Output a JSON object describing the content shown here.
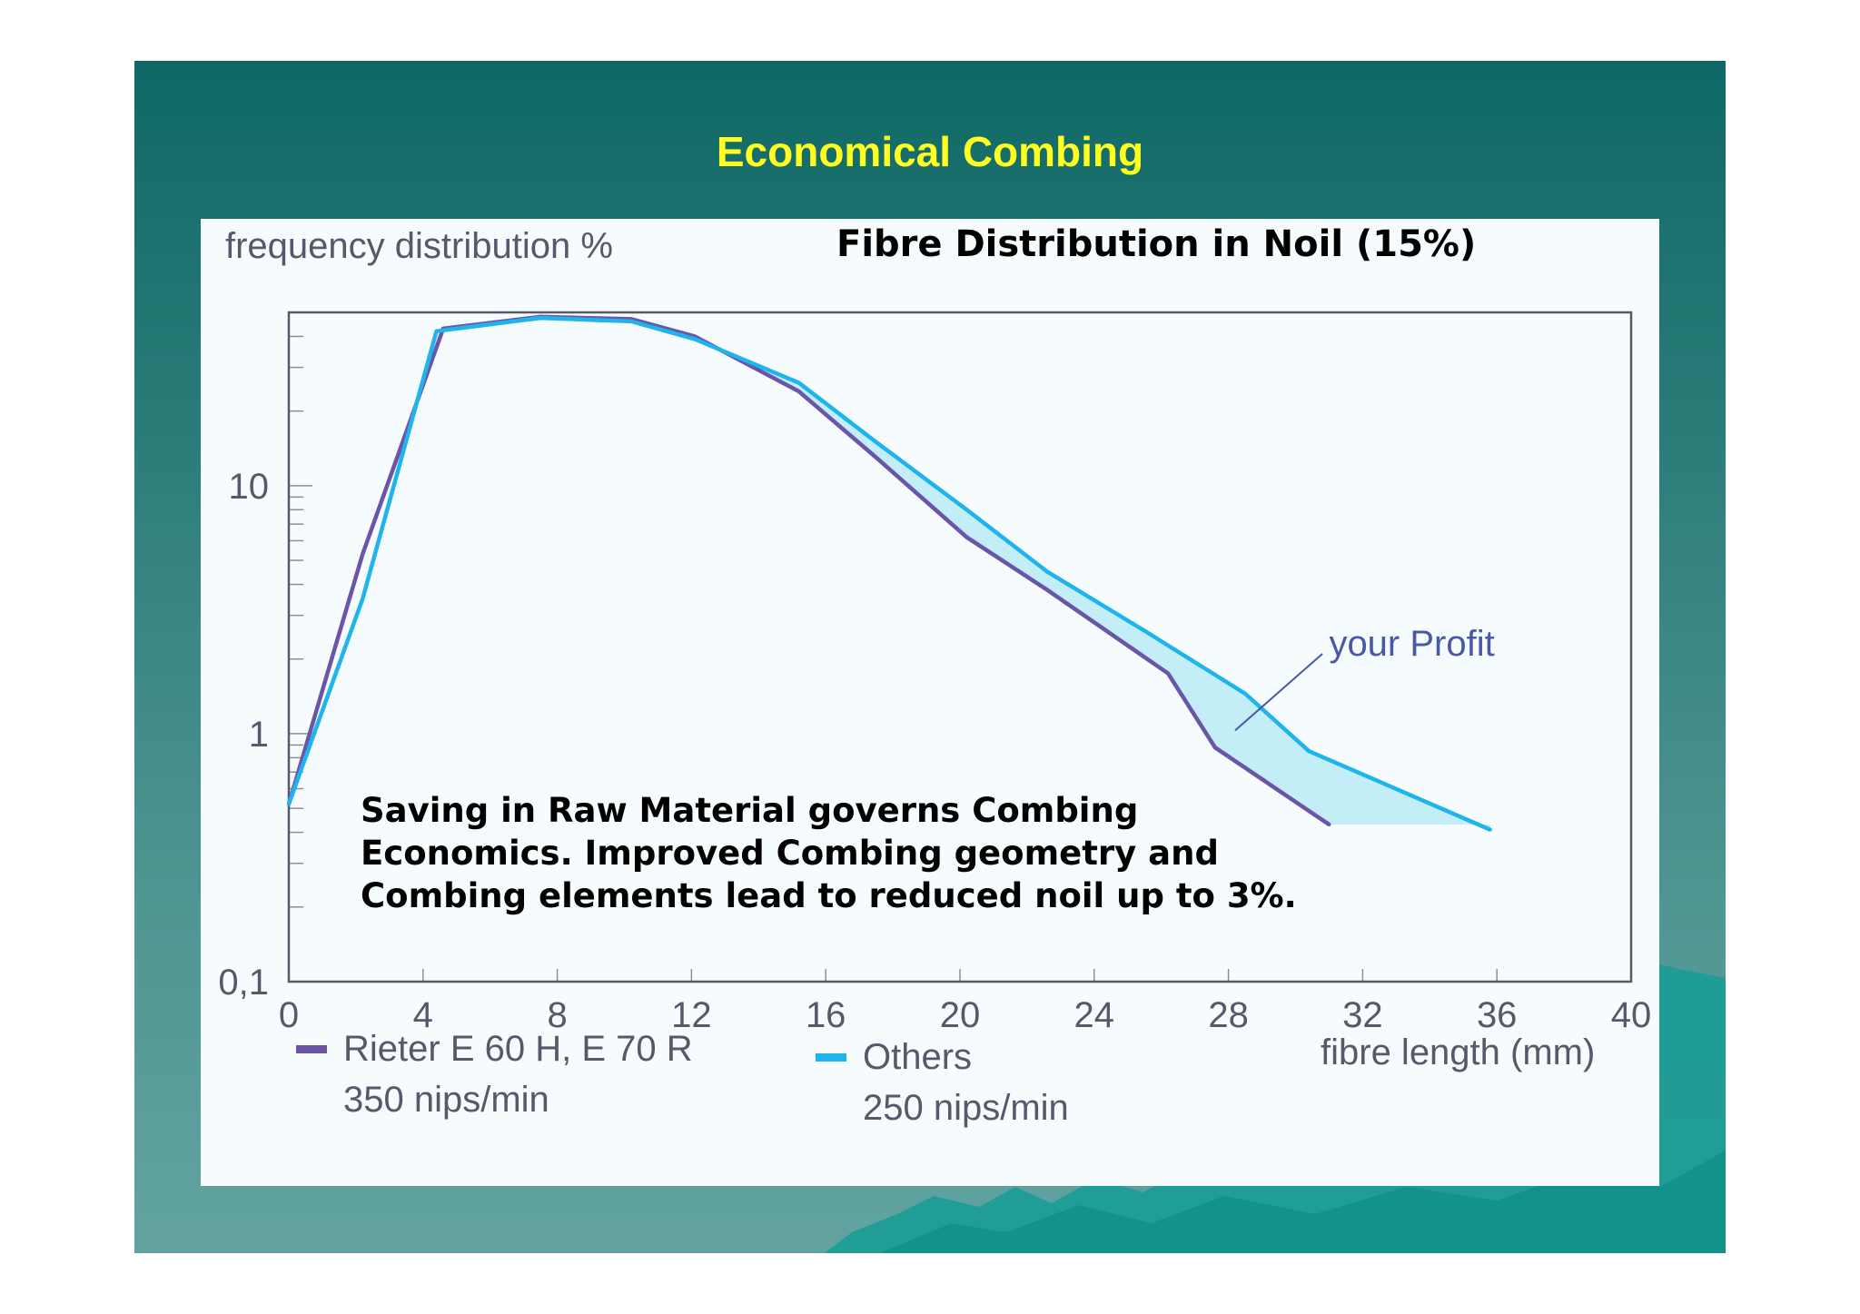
{
  "slide": {
    "title": "Economical Combing",
    "annotation_lines": [
      "Saving in Raw Material governs Combing",
      "Economics. Improved Combing geometry and",
      "Combing elements lead to reduced noil up to 3%."
    ]
  },
  "colors": {
    "background_top": "#0f6865",
    "background_bottom": "#62a3a0",
    "title": "#ffff22",
    "rieter": "#6a55a8",
    "others": "#1fb4ec",
    "profit_fill": "#bfecf6"
  },
  "chart_data": {
    "type": "line",
    "title": "Fibre Distribution in Noil (15%)",
    "ylabel": "frequency distribution %",
    "xlabel": "fibre length (mm)",
    "y_scale": "log",
    "xlim": [
      0,
      40
    ],
    "ylim": [
      0.1,
      50
    ],
    "x_ticks": [
      "0",
      "4",
      "8",
      "12",
      "16",
      "20",
      "24",
      "28",
      "32",
      "36",
      "40"
    ],
    "y_ticks": [
      {
        "value": 0.1,
        "label": "0,1"
      },
      {
        "value": 1,
        "label": "1"
      },
      {
        "value": 10,
        "label": "10"
      }
    ],
    "series": [
      {
        "name": "Rieter E 60 H, E 70 R",
        "legend_sub": "350 nips/min",
        "color": "#6a55a8",
        "points": [
          [
            0,
            0.52
          ],
          [
            2.2,
            5.3
          ],
          [
            4.6,
            43
          ],
          [
            7.5,
            48
          ],
          [
            10.2,
            47
          ],
          [
            12.1,
            40
          ],
          [
            15.2,
            24
          ],
          [
            17.5,
            13
          ],
          [
            20.2,
            6.2
          ],
          [
            22.6,
            3.8
          ],
          [
            26.2,
            1.75
          ],
          [
            27.6,
            0.88
          ],
          [
            31,
            0.43
          ]
        ]
      },
      {
        "name": "Others",
        "legend_sub": "250 nips/min",
        "color": "#1fb4ec",
        "points": [
          [
            0,
            0.52
          ],
          [
            2.2,
            3.5
          ],
          [
            4.4,
            42
          ],
          [
            7.5,
            47.5
          ],
          [
            10.2,
            46
          ],
          [
            12.1,
            39
          ],
          [
            15.2,
            26
          ],
          [
            17.5,
            15
          ],
          [
            20.2,
            8
          ],
          [
            22.6,
            4.5
          ],
          [
            25.5,
            2.6
          ],
          [
            28.5,
            1.45
          ],
          [
            30.4,
            0.85
          ],
          [
            35.8,
            0.41
          ]
        ]
      }
    ],
    "annotations": [
      {
        "text": "your Profit",
        "pointing_to": "area between the Rieter and Others curves"
      }
    ]
  }
}
